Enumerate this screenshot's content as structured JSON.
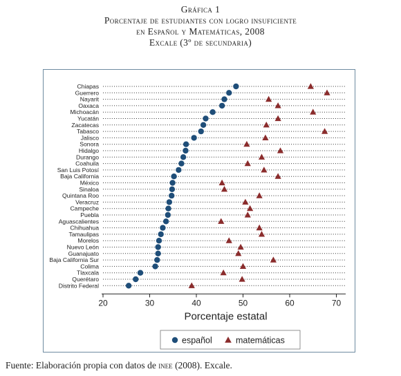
{
  "figure": {
    "label": "Gráfica 1",
    "title_line1": "Porcentaje de estudiantes con logro insuficiente",
    "title_line2": "en Español y Matemáticas, 2008",
    "title_line3": "Excale (3º de secundaria)"
  },
  "source": {
    "prefix": "Fuente: Elaboración propia con datos de ",
    "org": "inee",
    "suffix": " (2008). Excale."
  },
  "colors": {
    "espanol": "#1f4e79",
    "matematicas": "#8b2c2c",
    "grid": "#333333"
  },
  "chart_data": {
    "type": "scatter",
    "orientation": "horizontal-dot",
    "xlabel": "Porcentaje estatal",
    "xlim": [
      20,
      72
    ],
    "xticks": [
      20,
      30,
      40,
      50,
      60,
      70
    ],
    "legend_position": "bottom",
    "categories": [
      "Chiapas",
      "Guerrero",
      "Nayarit",
      "Oaxaca",
      "Michoacán",
      "Yucatán",
      "Zacatecas",
      "Tabasco",
      "Jalisco",
      "Sonora",
      "Hidalgo",
      "Durango",
      "Coahuila",
      "San Luis Potosí",
      "Baja California",
      "México",
      "Sinaloa",
      "Quintana Roo",
      "Veracruz",
      "Campeche",
      "Puebla",
      "Aguascalientes",
      "Chihuahua",
      "Tamaulipas",
      "Morelos",
      "Nuevo León",
      "Guanajuato",
      "Baja California Sur",
      "Colima",
      "Tlaxcala",
      "Querétaro",
      "Distrito Federal"
    ],
    "series": [
      {
        "name": "español",
        "marker": "circle",
        "values": [
          48.5,
          47.0,
          46.0,
          45.5,
          43.5,
          42.0,
          41.5,
          41.0,
          39.5,
          37.8,
          37.7,
          37.2,
          36.8,
          36.2,
          35.2,
          34.9,
          34.8,
          34.7,
          34.2,
          34.0,
          33.9,
          33.5,
          32.8,
          32.4,
          32.0,
          31.8,
          31.8,
          31.6,
          31.2,
          28.0,
          27.0,
          25.5
        ]
      },
      {
        "name": "matemáticas",
        "marker": "triangle",
        "values": [
          64.5,
          68.0,
          55.5,
          57.5,
          65.0,
          57.5,
          55.0,
          67.5,
          54.8,
          50.8,
          58.0,
          54.0,
          51.0,
          54.5,
          57.5,
          45.5,
          46.0,
          53.5,
          50.5,
          51.5,
          51.0,
          45.3,
          53.5,
          54.0,
          47.0,
          49.5,
          49.0,
          56.5,
          50.0,
          45.8,
          49.8,
          39.0
        ]
      }
    ]
  }
}
